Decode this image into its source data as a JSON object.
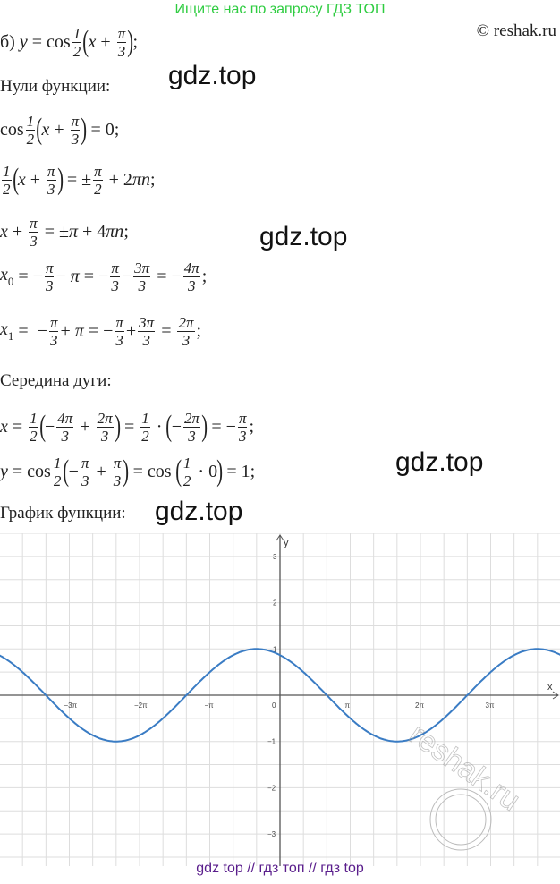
{
  "banner": "Ищите нас по запросу ГДЗ ТОП",
  "copyright": "© reshak.ru",
  "watermarks": [
    "gdz.top",
    "gdz.top",
    "gdz.top",
    "gdz.top"
  ],
  "labels": {
    "zeros": "Нули функции:",
    "arc_mid": "Середина дуги:",
    "graph": "График функции:"
  },
  "formulas": [
    [
      {
        "t": "б) "
      },
      {
        "v": "y"
      },
      {
        "t": " = cos"
      },
      {
        "f": [
          "1",
          "2"
        ]
      },
      {
        "L": "("
      },
      {
        "v": "x"
      },
      {
        "t": " + "
      },
      {
        "f": [
          "π",
          "3"
        ]
      },
      {
        "L": ")"
      },
      {
        "t": ";"
      }
    ],
    [
      {
        "t": "cos"
      },
      {
        "f": [
          "1",
          "2"
        ]
      },
      {
        "L": "("
      },
      {
        "v": "x"
      },
      {
        "t": " + "
      },
      {
        "f": [
          "π",
          "3"
        ]
      },
      {
        "L": ")"
      },
      {
        "t": " = 0;"
      }
    ],
    [
      {
        "f": [
          "1",
          "2"
        ]
      },
      {
        "L": "("
      },
      {
        "v": "x"
      },
      {
        "t": " + "
      },
      {
        "f": [
          "π",
          "3"
        ]
      },
      {
        "L": ")"
      },
      {
        "t": " = ±"
      },
      {
        "f": [
          "π",
          "2"
        ]
      },
      {
        "t": " + 2"
      },
      {
        "v": "πn"
      },
      {
        "t": ";"
      }
    ],
    [
      {
        "v": "x"
      },
      {
        "t": " + "
      },
      {
        "f": [
          "π",
          "3"
        ]
      },
      {
        "t": " = ±"
      },
      {
        "v": "π"
      },
      {
        "t": " + 4"
      },
      {
        "v": "πn"
      },
      {
        "t": ";"
      }
    ],
    [
      {
        "s": [
          "x",
          "0"
        ]
      },
      {
        "t": " = −"
      },
      {
        "f": [
          "π",
          "3"
        ]
      },
      {
        "t": "− "
      },
      {
        "v": "π"
      },
      {
        "t": " = −"
      },
      {
        "f": [
          "π",
          "3"
        ]
      },
      {
        "t": "−"
      },
      {
        "f": [
          "3π",
          "3"
        ]
      },
      {
        "t": " = −"
      },
      {
        "f": [
          "4π",
          "3"
        ]
      },
      {
        "t": ";"
      }
    ],
    [
      {
        "s": [
          "x",
          "1"
        ]
      },
      {
        "t": " =  −"
      },
      {
        "f": [
          "π",
          "3"
        ]
      },
      {
        "t": "+ "
      },
      {
        "v": "π"
      },
      {
        "t": " = −"
      },
      {
        "f": [
          "π",
          "3"
        ]
      },
      {
        "t": "+"
      },
      {
        "f": [
          "3π",
          "3"
        ]
      },
      {
        "t": " = "
      },
      {
        "f": [
          "2π",
          "3"
        ]
      },
      {
        "t": ";"
      }
    ],
    [
      {
        "v": "x"
      },
      {
        "t": " = "
      },
      {
        "f": [
          "1",
          "2"
        ]
      },
      {
        "L": "("
      },
      {
        "t": "−"
      },
      {
        "f": [
          "4π",
          "3"
        ]
      },
      {
        "t": " + "
      },
      {
        "f": [
          "2π",
          "3"
        ]
      },
      {
        "L": ")"
      },
      {
        "t": " = "
      },
      {
        "f": [
          "1",
          "2"
        ]
      },
      {
        "t": " · "
      },
      {
        "L": "("
      },
      {
        "t": "−"
      },
      {
        "f": [
          "2π",
          "3"
        ]
      },
      {
        "L": ")"
      },
      {
        "t": " = −"
      },
      {
        "f": [
          "π",
          "3"
        ]
      },
      {
        "t": ";"
      }
    ],
    [
      {
        "v": "y"
      },
      {
        "t": " = cos"
      },
      {
        "f": [
          "1",
          "2"
        ]
      },
      {
        "L": "("
      },
      {
        "t": "−"
      },
      {
        "f": [
          "π",
          "3"
        ]
      },
      {
        "t": " + "
      },
      {
        "f": [
          "π",
          "3"
        ]
      },
      {
        "L": ")"
      },
      {
        "t": " = cos "
      },
      {
        "L": "("
      },
      {
        "f": [
          "1",
          "2"
        ]
      },
      {
        "t": " · 0"
      },
      {
        "L": ")"
      },
      {
        "t": " = 1;"
      }
    ]
  ],
  "footer": "gdz top  //  гдз топ  //  гдз top",
  "chart_data": {
    "type": "line",
    "function": "y = cos(1/2 (x + π/3))",
    "xlabel": "x",
    "ylabel": "y",
    "xlim_pi": [
      -4,
      4
    ],
    "ylim": [
      -3.7,
      3.5
    ],
    "x_ticks": [
      "−3π",
      "−2π",
      "−π",
      "0",
      "π",
      "2π",
      "3π"
    ],
    "x_tick_values_pi": [
      -3,
      -2,
      -1,
      0,
      1,
      2,
      3
    ],
    "y_ticks": [
      "3",
      "2",
      "1",
      "−1",
      "−2",
      "−3"
    ],
    "y_tick_values": [
      3,
      2,
      1,
      -1,
      -2,
      -3
    ],
    "grid": true,
    "grid_step_x_pi": 0.3333,
    "grid_step_y": 0.5,
    "line_color": "#3a7cc4",
    "watermark": "reshak.ru"
  }
}
